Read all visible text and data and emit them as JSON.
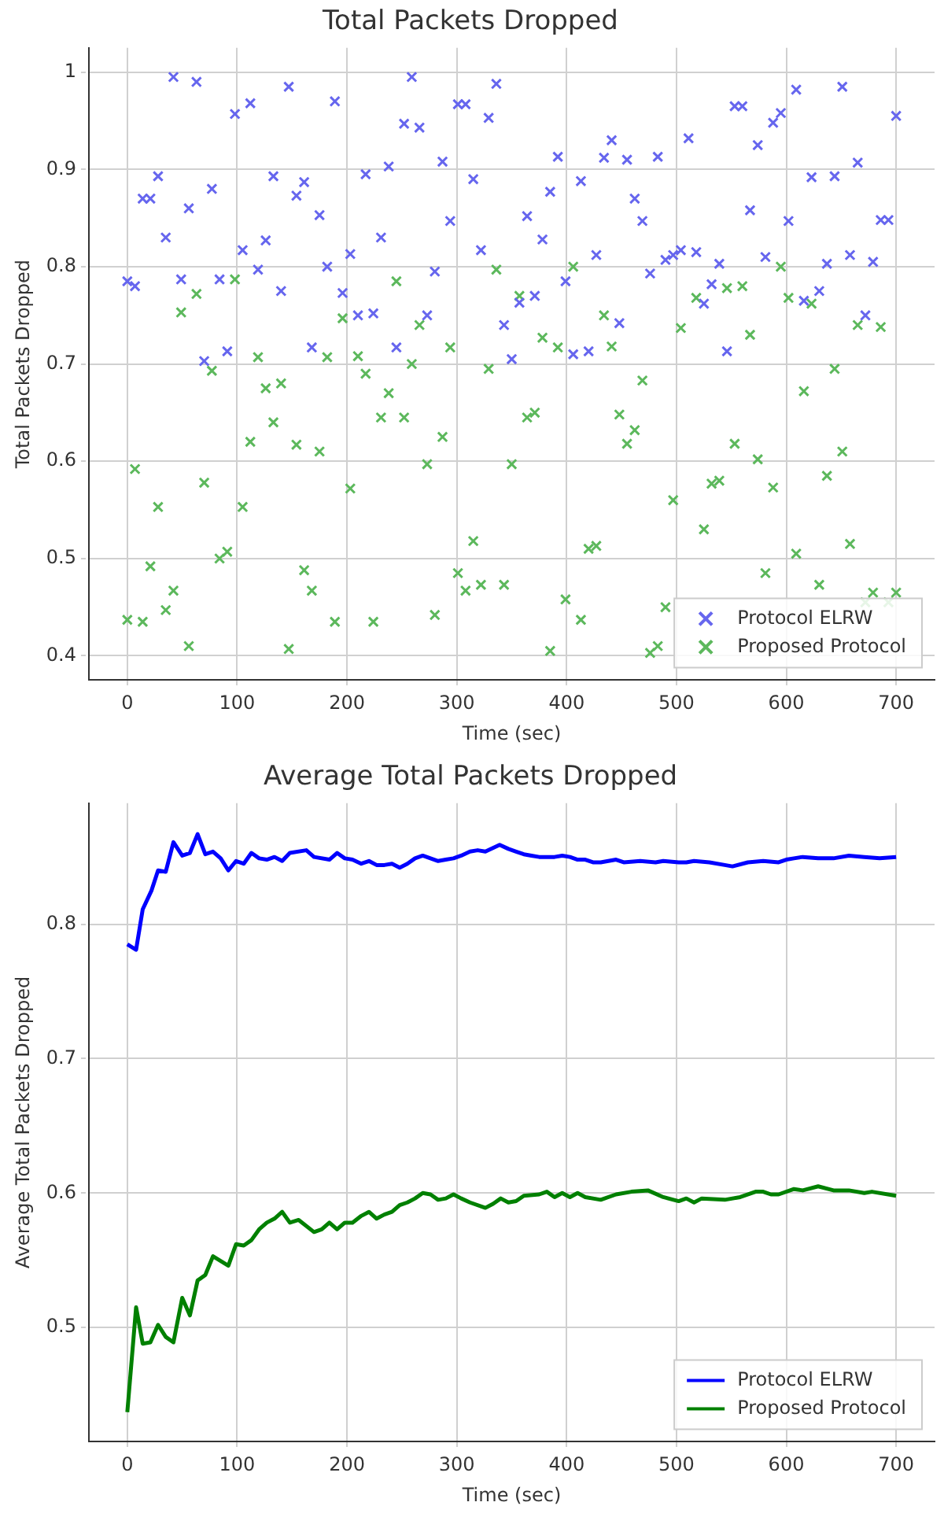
{
  "chart_data": [
    {
      "type": "scatter",
      "title": "Total Packets Dropped",
      "xlabel": "Time (sec)",
      "ylabel": "Total Packets Dropped",
      "xlim": [
        -35,
        735
      ],
      "xticks": [
        0,
        100,
        200,
        300,
        400,
        500,
        600,
        700
      ],
      "ylim": [
        0.375,
        1.025
      ],
      "yticks": [
        0.4,
        0.5,
        0.6,
        0.7,
        0.8,
        0.9,
        1.0
      ],
      "grid": true,
      "legend": "bottom right",
      "marker": "cross",
      "series": [
        {
          "name": "Protocol ELRW",
          "color": "#6666ee",
          "x": [
            0,
            7,
            14,
            21,
            28,
            35,
            42,
            49,
            56,
            63,
            70,
            77,
            84,
            91,
            98,
            105,
            112,
            119,
            126,
            133,
            140,
            147,
            154,
            161,
            168,
            175,
            182,
            189,
            196,
            203,
            210,
            217,
            224,
            231,
            238,
            245,
            252,
            259,
            266,
            273,
            280,
            287,
            294,
            301,
            308,
            315,
            322,
            329,
            336,
            343,
            350,
            357,
            364,
            371,
            378,
            385,
            392,
            399,
            406,
            413,
            420,
            427,
            434,
            441,
            448,
            455,
            462,
            469,
            476,
            483,
            490,
            497,
            504,
            511,
            518,
            525,
            532,
            539,
            546,
            553,
            560,
            567,
            574,
            581,
            588,
            595,
            602,
            609,
            616,
            623,
            630,
            637,
            644,
            651,
            658,
            665,
            672,
            679,
            686,
            693,
            700
          ],
          "values": [
            0.785,
            0.78,
            0.87,
            0.87,
            0.893,
            0.83,
            0.995,
            0.787,
            0.86,
            0.99,
            0.703,
            0.88,
            0.787,
            0.713,
            0.957,
            0.817,
            0.968,
            0.797,
            0.827,
            0.893,
            0.775,
            0.985,
            0.873,
            0.887,
            0.717,
            0.853,
            0.8,
            0.97,
            0.773,
            0.813,
            0.75,
            0.895,
            0.752,
            0.83,
            0.903,
            0.717,
            0.947,
            0.995,
            0.943,
            0.75,
            0.795,
            0.908,
            0.847,
            0.967,
            0.967,
            0.89,
            0.817,
            0.953,
            0.988,
            0.74,
            0.705,
            0.763,
            0.852,
            0.77,
            0.828,
            0.877,
            0.913,
            0.785,
            0.71,
            0.888,
            0.713,
            0.812,
            0.912,
            0.93,
            0.742,
            0.91,
            0.87,
            0.847,
            0.793,
            0.913,
            0.807,
            0.812,
            0.817,
            0.932,
            0.815,
            0.762,
            0.782,
            0.803,
            0.713,
            0.965,
            0.965,
            0.858,
            0.925,
            0.81,
            0.948,
            0.958,
            0.847,
            0.982,
            0.765,
            0.892,
            0.775,
            0.803,
            0.893,
            0.985,
            0.812,
            0.907,
            0.75,
            0.805,
            0.848,
            0.848,
            0.955
          ]
        },
        {
          "name": "Proposed Protocol",
          "color": "#5cb85c",
          "x": [
            0,
            7,
            14,
            21,
            28,
            35,
            42,
            49,
            56,
            63,
            70,
            77,
            84,
            91,
            98,
            105,
            112,
            119,
            126,
            133,
            140,
            147,
            154,
            161,
            168,
            175,
            182,
            189,
            196,
            203,
            210,
            217,
            224,
            231,
            238,
            245,
            252,
            259,
            266,
            273,
            280,
            287,
            294,
            301,
            308,
            315,
            322,
            329,
            336,
            343,
            350,
            357,
            364,
            371,
            378,
            385,
            392,
            399,
            406,
            413,
            420,
            427,
            434,
            441,
            448,
            455,
            462,
            469,
            476,
            483,
            490,
            497,
            504,
            511,
            518,
            525,
            532,
            539,
            546,
            553,
            560,
            567,
            574,
            581,
            588,
            595,
            602,
            609,
            616,
            623,
            630,
            637,
            644,
            651,
            658,
            665,
            672,
            679,
            686,
            693,
            700
          ],
          "values": [
            0.437,
            0.592,
            0.435,
            0.492,
            0.553,
            0.447,
            0.467,
            0.753,
            0.41,
            0.772,
            0.578,
            0.693,
            0.5,
            0.507,
            0.787,
            0.553,
            0.62,
            0.707,
            0.675,
            0.64,
            0.68,
            0.407,
            0.617,
            0.488,
            0.467,
            0.61,
            0.707,
            0.435,
            0.747,
            0.572,
            0.708,
            0.69,
            0.435,
            0.645,
            0.67,
            0.785,
            0.645,
            0.7,
            0.74,
            0.597,
            0.442,
            0.625,
            0.717,
            0.485,
            0.467,
            0.518,
            0.473,
            0.695,
            0.797,
            0.473,
            0.597,
            0.77,
            0.645,
            0.65,
            0.727,
            0.405,
            0.717,
            0.458,
            0.8,
            0.437,
            0.51,
            0.513,
            0.75,
            0.718,
            0.648,
            0.618,
            0.632,
            0.683,
            0.403,
            0.41,
            0.45,
            0.56,
            0.737,
            null,
            0.768,
            0.53,
            0.577,
            0.58,
            0.778,
            0.618,
            0.78,
            0.73,
            0.602,
            0.485,
            0.573,
            0.8,
            0.768,
            0.505,
            0.672,
            0.762,
            0.473,
            0.585,
            0.695,
            0.61,
            0.515,
            0.74,
            0.455,
            0.465,
            0.738,
            0.455,
            0.465
          ]
        }
      ]
    },
    {
      "type": "line",
      "title": "Average Total Packets Dropped",
      "xlabel": "Time (sec)",
      "ylabel": "Average Total Packets Dropped",
      "xlim": [
        -35,
        735
      ],
      "xticks": [
        0,
        100,
        200,
        300,
        400,
        500,
        600,
        700
      ],
      "ylim": [
        0.415,
        0.89
      ],
      "yticks": [
        0.5,
        0.6,
        0.7,
        0.8
      ],
      "grid": true,
      "legend": "bottom right",
      "marker": "none",
      "line_style": "solid",
      "series": [
        {
          "name": "Protocol ELRW",
          "color": "#0000ff",
          "x": [
            0,
            8,
            14,
            22,
            28,
            35,
            42,
            50,
            57,
            64,
            71,
            78,
            85,
            92,
            99,
            106,
            113,
            120,
            127,
            134,
            141,
            148,
            163,
            170,
            184,
            191,
            198,
            205,
            213,
            220,
            227,
            234,
            241,
            248,
            255,
            262,
            269,
            276,
            283,
            290,
            297,
            304,
            312,
            319,
            326,
            339,
            347,
            354,
            361,
            368,
            375,
            389,
            396,
            403,
            410,
            417,
            424,
            431,
            445,
            452,
            467,
            481,
            488,
            502,
            509,
            516,
            530,
            544,
            551,
            565,
            579,
            593,
            600,
            607,
            615,
            629,
            643,
            657,
            671,
            685,
            700
          ],
          "values": [
            0.785,
            0.781,
            0.811,
            0.825,
            0.84,
            0.839,
            0.861,
            0.851,
            0.853,
            0.867,
            0.852,
            0.854,
            0.849,
            0.84,
            0.847,
            0.845,
            0.853,
            0.849,
            0.848,
            0.85,
            0.847,
            0.853,
            0.855,
            0.85,
            0.848,
            0.853,
            0.849,
            0.848,
            0.845,
            0.847,
            0.844,
            0.844,
            0.845,
            0.842,
            0.845,
            0.849,
            0.851,
            0.849,
            0.847,
            0.848,
            0.849,
            0.851,
            0.854,
            0.855,
            0.854,
            0.859,
            0.856,
            0.854,
            0.852,
            0.851,
            0.85,
            0.85,
            0.851,
            0.85,
            0.848,
            0.848,
            0.846,
            0.846,
            0.848,
            0.846,
            0.847,
            0.846,
            0.847,
            0.846,
            0.846,
            0.847,
            0.846,
            0.844,
            0.843,
            0.846,
            0.847,
            0.846,
            0.848,
            0.849,
            0.85,
            0.849,
            0.849,
            0.851,
            0.85,
            0.849,
            0.85
          ]
        },
        {
          "name": "Proposed Protocol",
          "color": "#008000",
          "x": [
            0,
            8,
            14,
            21,
            28,
            35,
            42,
            50,
            57,
            64,
            71,
            78,
            92,
            99,
            106,
            113,
            120,
            127,
            134,
            141,
            148,
            156,
            170,
            177,
            184,
            191,
            198,
            205,
            213,
            220,
            227,
            234,
            241,
            248,
            255,
            262,
            269,
            276,
            283,
            290,
            297,
            304,
            312,
            326,
            333,
            340,
            347,
            354,
            361,
            375,
            382,
            389,
            396,
            403,
            410,
            417,
            431,
            445,
            459,
            474,
            488,
            502,
            509,
            516,
            523,
            544,
            558,
            572,
            579,
            586,
            593,
            607,
            615,
            629,
            643,
            657,
            671,
            678,
            700
          ],
          "values": [
            0.437,
            0.515,
            0.488,
            0.489,
            0.502,
            0.493,
            0.489,
            0.522,
            0.509,
            0.535,
            0.539,
            0.553,
            0.546,
            0.562,
            0.561,
            0.565,
            0.573,
            0.578,
            0.581,
            0.586,
            0.578,
            0.58,
            0.571,
            0.573,
            0.578,
            0.573,
            0.578,
            0.578,
            0.583,
            0.586,
            0.581,
            0.584,
            0.586,
            0.591,
            0.593,
            0.596,
            0.6,
            0.599,
            0.595,
            0.596,
            0.599,
            0.596,
            0.593,
            0.589,
            0.592,
            0.596,
            0.593,
            0.594,
            0.598,
            0.599,
            0.601,
            0.597,
            0.6,
            0.597,
            0.6,
            0.597,
            0.595,
            0.599,
            0.601,
            0.602,
            0.597,
            0.594,
            0.596,
            0.593,
            0.596,
            0.595,
            0.597,
            0.601,
            0.601,
            0.599,
            0.599,
            0.603,
            0.602,
            0.605,
            0.602,
            0.602,
            0.6,
            0.601,
            0.598
          ]
        }
      ]
    }
  ]
}
